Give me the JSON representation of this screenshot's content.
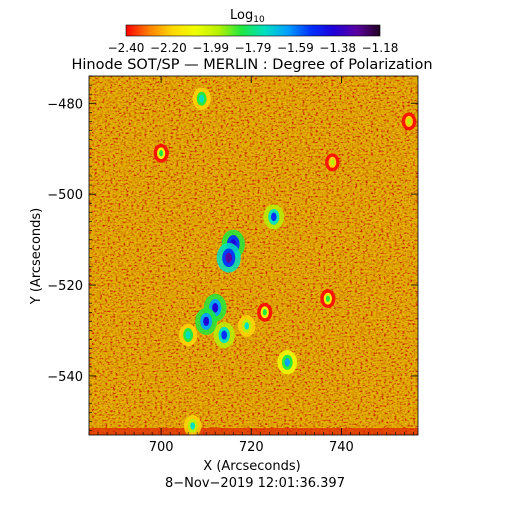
{
  "chart_data": {
    "type": "heatmap",
    "title": "Hinode SOT/SP — MERLIN : Degree of Polarization",
    "colorbar": {
      "label": "Log",
      "label_subscript": "10",
      "tick_labels": [
        "−2.40",
        "−2.20",
        "−1.99",
        "−1.79",
        "−1.59",
        "−1.38",
        "−1.18"
      ],
      "range": [
        -2.4,
        -1.18
      ],
      "colormap": [
        "#ff0000",
        "#ff8000",
        "#ffd800",
        "#f0ff00",
        "#b8f000",
        "#20e840",
        "#00e0c0",
        "#00a0ff",
        "#0030ff",
        "#2000d8",
        "#5a00a0",
        "#200020"
      ]
    },
    "xlabel": "X (Arcseconds)",
    "ylabel": "Y (Arcseconds)",
    "xlim": [
      684,
      757
    ],
    "ylim": [
      -553,
      -474
    ],
    "xticks": [
      700,
      720,
      740
    ],
    "xtick_labels": [
      "700",
      "720",
      "740"
    ],
    "yticks": [
      -480,
      -500,
      -520,
      -540
    ],
    "ytick_labels": [
      "−480",
      "−500",
      "−520",
      "−540"
    ],
    "background_value": -2.25,
    "features": [
      {
        "x": 716,
        "y": -511,
        "value": -1.35
      },
      {
        "x": 715,
        "y": -514,
        "value": -1.3
      },
      {
        "x": 712,
        "y": -525,
        "value": -1.4
      },
      {
        "x": 710,
        "y": -528,
        "value": -1.45
      },
      {
        "x": 714,
        "y": -531,
        "value": -1.5
      },
      {
        "x": 725,
        "y": -505,
        "value": -1.55
      },
      {
        "x": 728,
        "y": -537,
        "value": -1.6
      },
      {
        "x": 706,
        "y": -531,
        "value": -1.7
      },
      {
        "x": 709,
        "y": -479,
        "value": -1.7
      },
      {
        "x": 719,
        "y": -529,
        "value": -1.75
      },
      {
        "x": 707,
        "y": -551,
        "value": -1.75
      },
      {
        "x": 700,
        "y": -491,
        "value": -1.9
      },
      {
        "x": 723,
        "y": -526,
        "value": -1.9
      },
      {
        "x": 737,
        "y": -523,
        "value": -1.9
      },
      {
        "x": 738,
        "y": -493,
        "value": -1.95
      },
      {
        "x": 755,
        "y": -484,
        "value": -1.95
      }
    ]
  },
  "footer": {
    "timestamp": "8−Nov−2019 12:01:36.397"
  }
}
